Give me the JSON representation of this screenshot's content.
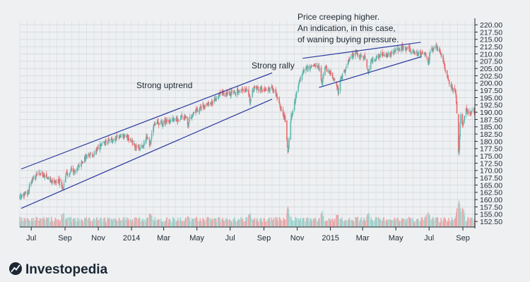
{
  "chart_data": {
    "type": "candlestick",
    "title": "",
    "xlabel": "",
    "ylabel": "",
    "grid": true,
    "y_axis_side": "right",
    "ylim": [
      150,
      222.5
    ],
    "y_ticks": [
      "220.00",
      "217.50",
      "215.00",
      "212.50",
      "210.00",
      "207.50",
      "205.00",
      "202.50",
      "200.00",
      "197.50",
      "195.00",
      "192.50",
      "190.00",
      "187.50",
      "185.00",
      "182.50",
      "180.00",
      "177.50",
      "175.00",
      "172.50",
      "170.00",
      "167.50",
      "165.00",
      "162.50",
      "160.00",
      "157.50",
      "155.00",
      "152.50"
    ],
    "x_ticks": [
      "Jul",
      "Sep",
      "Nov",
      "2014",
      "Mar",
      "May",
      "Jul",
      "Sep",
      "Nov",
      "2015",
      "Mar",
      "May",
      "Jul",
      "Sep"
    ],
    "price_path": [
      {
        "t": "2013-06",
        "close": 161
      },
      {
        "t": "2013-07",
        "close": 169
      },
      {
        "t": "2013-08",
        "close": 166
      },
      {
        "t": "2013-09",
        "close": 170
      },
      {
        "t": "2013-10",
        "close": 175
      },
      {
        "t": "2013-11",
        "close": 180
      },
      {
        "t": "2013-12",
        "close": 182
      },
      {
        "t": "2014-01",
        "close": 178
      },
      {
        "t": "2014-02",
        "close": 186
      },
      {
        "t": "2014-03",
        "close": 187
      },
      {
        "t": "2014-04",
        "close": 189
      },
      {
        "t": "2014-05",
        "close": 192
      },
      {
        "t": "2014-06",
        "close": 196
      },
      {
        "t": "2014-07",
        "close": 197
      },
      {
        "t": "2014-08",
        "close": 198
      },
      {
        "t": "2014-09",
        "close": 198
      },
      {
        "t": "2014-10",
        "close": 187
      },
      {
        "t": "2014-11",
        "close": 205
      },
      {
        "t": "2014-12",
        "close": 206
      },
      {
        "t": "2015-01",
        "close": 201
      },
      {
        "t": "2015-02",
        "close": 210
      },
      {
        "t": "2015-03",
        "close": 208
      },
      {
        "t": "2015-04",
        "close": 210
      },
      {
        "t": "2015-05",
        "close": 212
      },
      {
        "t": "2015-06",
        "close": 210
      },
      {
        "t": "2015-07",
        "close": 212
      },
      {
        "t": "2015-08",
        "close": 198
      },
      {
        "t": "2015-09",
        "close": 190
      }
    ],
    "trendlines": [
      {
        "from": {
          "t": "2013-06",
          "price": 170.5
        },
        "to": {
          "t": "2014-09",
          "price": 203.5
        }
      },
      {
        "from": {
          "t": "2013-06",
          "price": 157
        },
        "to": {
          "t": "2014-09",
          "price": 194.5
        }
      },
      {
        "from": {
          "t": "2014-11",
          "price": 208.5
        },
        "to": {
          "t": "2015-06",
          "price": 214
        }
      },
      {
        "from": {
          "t": "2014-12",
          "price": 198.5
        },
        "to": {
          "t": "2015-06",
          "price": 209
        }
      }
    ],
    "annotations": [
      {
        "text": "Strong uptrend"
      },
      {
        "text": "Strong rally"
      },
      {
        "lines": [
          "Price creeping higher.",
          "An indication, in this case,",
          "of waning buying pressure."
        ]
      }
    ],
    "colors": {
      "up": "#5db8ae",
      "down": "#e8696e",
      "volume_up": "#9fd3cd",
      "volume_down": "#efa5a8",
      "trendline": "#2b3a9e",
      "grid": "#d7dbe0",
      "background": "#eef0f2"
    }
  },
  "brand": {
    "name": "Investopedia"
  }
}
